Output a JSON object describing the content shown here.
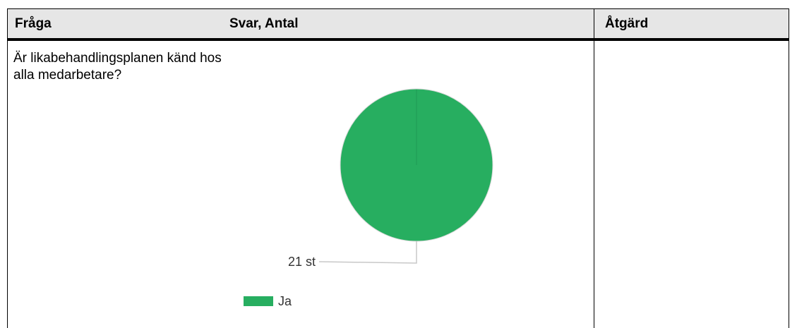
{
  "header": {
    "col_fraga": "Fråga",
    "col_svar": "Svar, Antal",
    "col_atgard": "Åtgärd"
  },
  "row": {
    "question": "Är likabehandlingsplanen känd hos alla medarbetare?",
    "action": ""
  },
  "colors": {
    "header_bg": "#e6e6e6",
    "slice_ja": "#27ae60"
  },
  "chart_data": {
    "type": "pie",
    "slices": [
      {
        "label": "Ja",
        "value": 21,
        "data_label": "21 st",
        "color": "#27ae60"
      }
    ],
    "legend": [
      "Ja"
    ],
    "legend_position": "bottom-left"
  }
}
